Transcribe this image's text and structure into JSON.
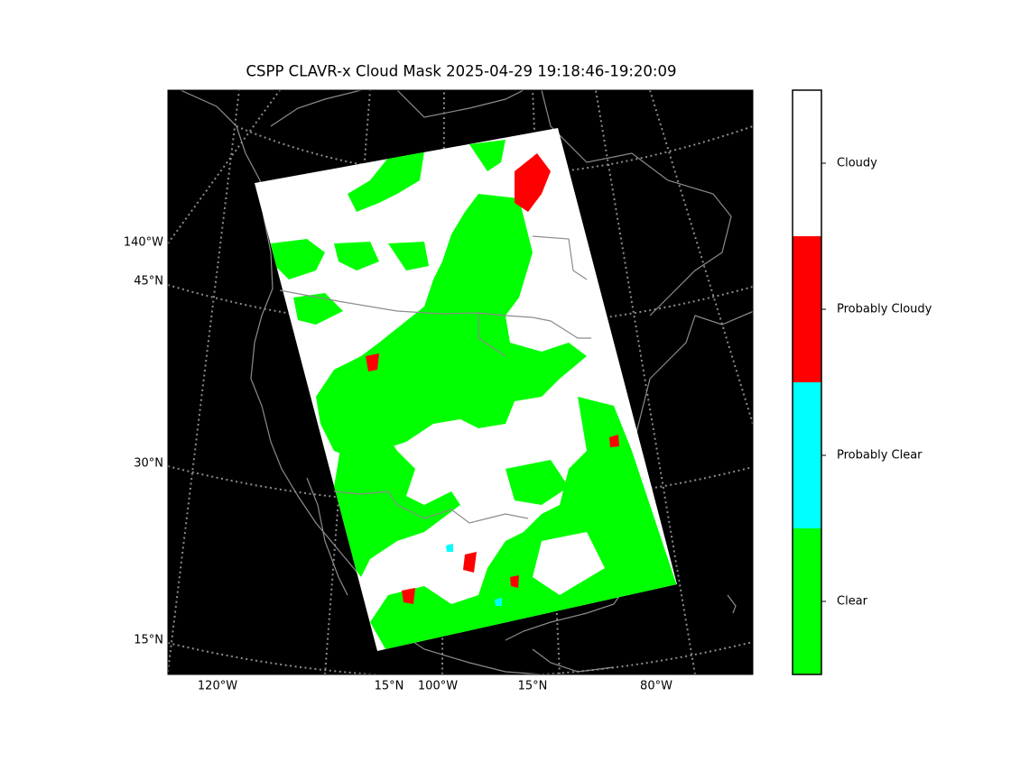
{
  "title": "CSPP CLAVR-x Cloud Mask 2025-04-29 19:18:46-19:20:09",
  "map_labels": {
    "left": [
      "140°W",
      "45°N",
      "30°N",
      "15°N"
    ],
    "bottom": [
      "120°W",
      "15°N",
      "100°W",
      "15°N",
      "80°W"
    ]
  },
  "colorbar": {
    "classes": [
      {
        "label": "Clear",
        "color": "#00ff00"
      },
      {
        "label": "Probably Clear",
        "color": "#00ffff"
      },
      {
        "label": "Probably Cloudy",
        "color": "#ff0000"
      },
      {
        "label": "Cloudy",
        "color": "#ffffff"
      }
    ]
  }
}
